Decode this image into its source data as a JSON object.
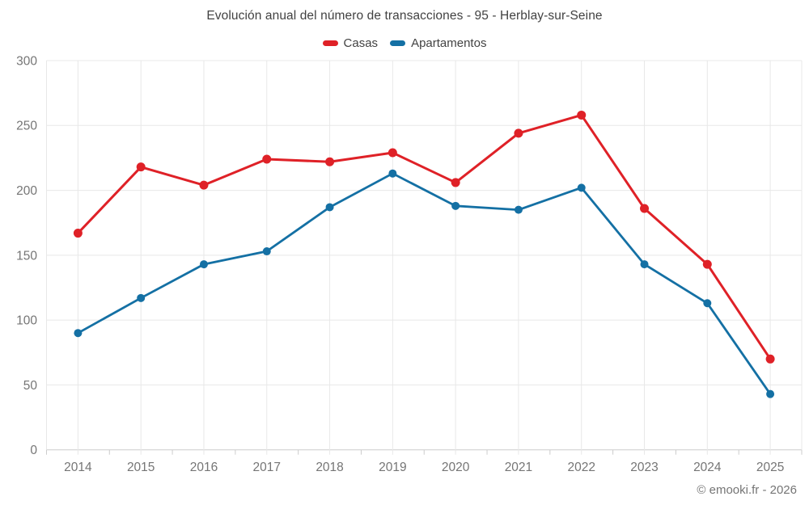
{
  "header": {
    "title": "Evolución anual del número de transacciones - 95 - Herblay-sur-Seine"
  },
  "footer": {
    "credit": "© emooki.fr - 2026"
  },
  "colors": {
    "casas": "#df2127",
    "apartamentos": "#1470a4",
    "grid": "#e8e8e8",
    "axis": "#cccccc",
    "title_text": "#424242",
    "tick_text": "#757575"
  },
  "chart_data": {
    "type": "line",
    "title": "Evolución anual del número de transacciones - 95 - Herblay-sur-Seine",
    "categories": [
      "2014",
      "2015",
      "2016",
      "2017",
      "2018",
      "2019",
      "2020",
      "2021",
      "2022",
      "2023",
      "2024",
      "2025"
    ],
    "series": [
      {
        "name": "Casas",
        "color": "#df2127",
        "values": [
          167,
          218,
          204,
          224,
          222,
          229,
          206,
          244,
          258,
          186,
          143,
          70
        ]
      },
      {
        "name": "Apartamentos",
        "color": "#1470a4",
        "values": [
          90,
          117,
          143,
          153,
          187,
          213,
          188,
          185,
          202,
          143,
          113,
          43
        ]
      }
    ],
    "xlabel": "",
    "ylabel": "",
    "ylim": [
      0,
      300
    ],
    "ytick_step": 50,
    "yticks": [
      0,
      50,
      100,
      150,
      200,
      250,
      300
    ],
    "grid": true,
    "legend_position": "top",
    "marker": "circle"
  }
}
